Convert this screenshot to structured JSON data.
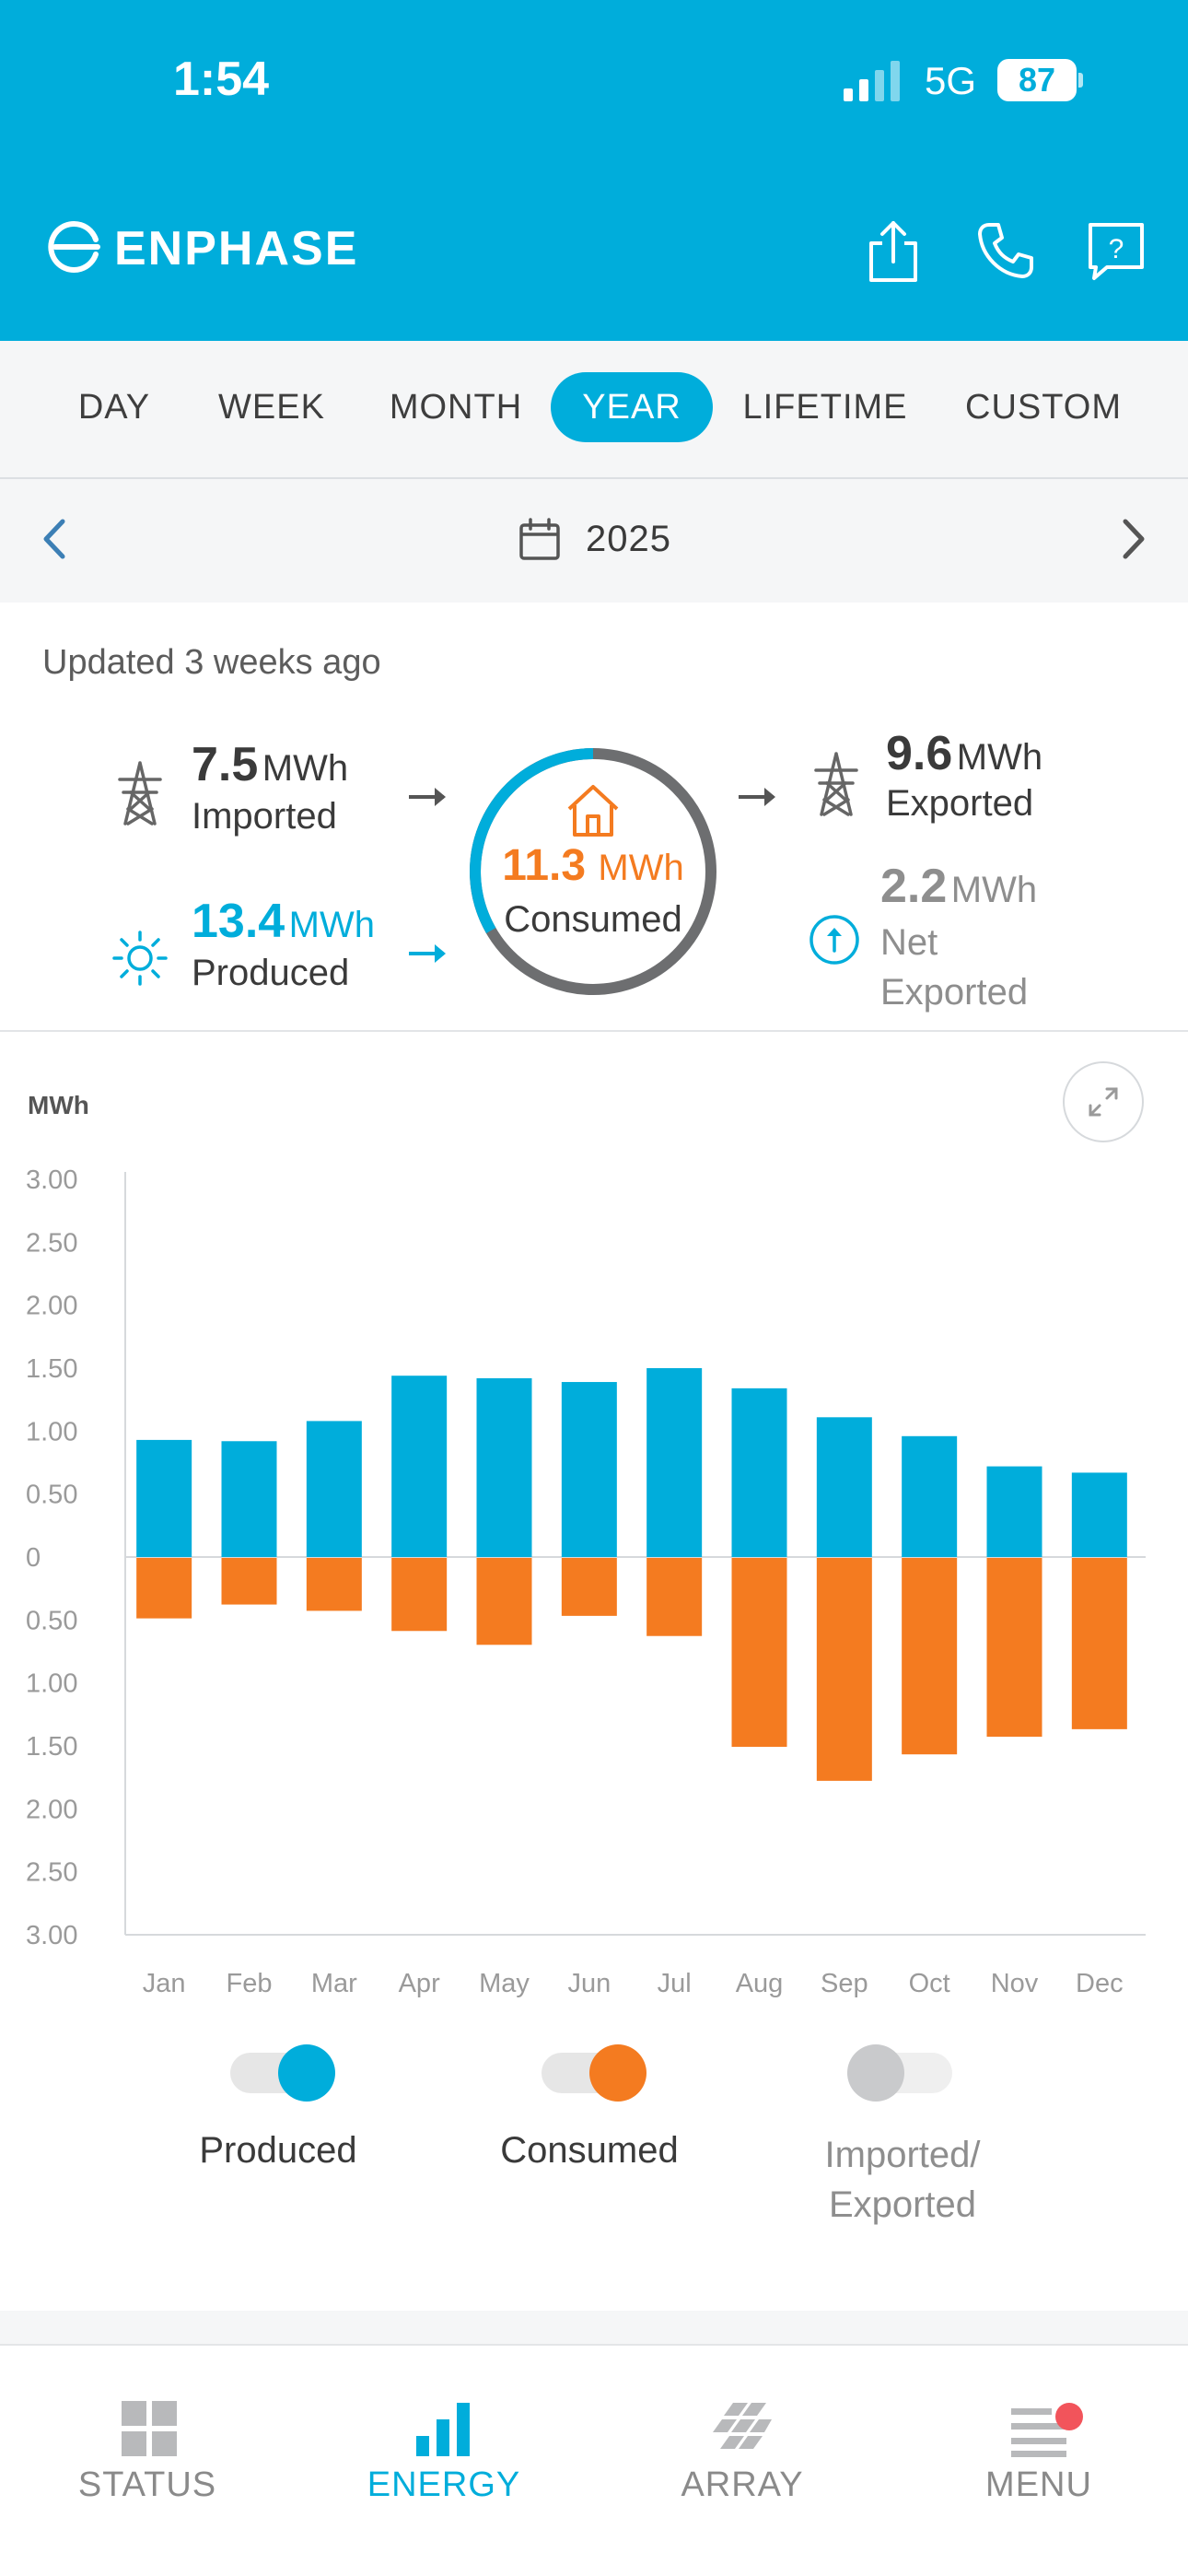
{
  "status_bar": {
    "time": "1:54",
    "network": "5G",
    "battery": "87"
  },
  "header": {
    "brand": "ENPHASE"
  },
  "period_tabs": [
    {
      "label": "DAY",
      "active": false
    },
    {
      "label": "WEEK",
      "active": false
    },
    {
      "label": "MONTH",
      "active": false
    },
    {
      "label": "YEAR",
      "active": true
    },
    {
      "label": "LIFETIME",
      "active": false
    },
    {
      "label": "CUSTOM",
      "active": false
    }
  ],
  "date_nav": {
    "label": "2025"
  },
  "summary": {
    "updated": "Updated 3 weeks ago",
    "imported": {
      "value": "7.5",
      "unit": "MWh",
      "label": "Imported"
    },
    "produced": {
      "value": "13.4",
      "unit": "MWh",
      "label": "Produced"
    },
    "consumed": {
      "value": "11.3",
      "unit": "MWh",
      "label": "Consumed"
    },
    "exported": {
      "value": "9.6",
      "unit": "MWh",
      "label": "Exported"
    },
    "net_exported": {
      "value": "2.2",
      "unit": "MWh",
      "label": "Net Exported"
    }
  },
  "colors": {
    "primary": "#00ADDB",
    "produced": "#00ADDB",
    "consumed": "#F47B20",
    "inactive": "#C9CACC",
    "notification": "#F2545B"
  },
  "chart_data": {
    "type": "bar",
    "ylabel": "MWh",
    "categories": [
      "Jan",
      "Feb",
      "Mar",
      "Apr",
      "May",
      "Jun",
      "Jul",
      "Aug",
      "Sep",
      "Oct",
      "Nov",
      "Dec"
    ],
    "series": [
      {
        "name": "Produced",
        "values": [
          0.93,
          0.92,
          1.08,
          1.44,
          1.42,
          1.39,
          1.5,
          1.34,
          1.11,
          0.96,
          0.72,
          0.67
        ]
      },
      {
        "name": "Consumed",
        "values": [
          0.48,
          0.37,
          0.42,
          0.58,
          0.69,
          0.46,
          0.62,
          1.5,
          1.77,
          1.56,
          1.42,
          1.36
        ]
      }
    ],
    "ylim": [
      -3,
      3
    ],
    "yticks": [
      "3.00",
      "2.50",
      "2.00",
      "1.50",
      "1.00",
      "0.50",
      "0",
      "0.50",
      "1.00",
      "1.50",
      "2.00",
      "2.50",
      "3.00"
    ],
    "grid": false,
    "legend": "bottom"
  },
  "legend": [
    {
      "label": "Produced",
      "on": true
    },
    {
      "label": "Consumed",
      "on": true
    },
    {
      "label": "Imported/ Exported",
      "on": false
    }
  ],
  "bottom_nav": [
    {
      "label": "STATUS",
      "active": false
    },
    {
      "label": "ENERGY",
      "active": true
    },
    {
      "label": "ARRAY",
      "active": false
    },
    {
      "label": "MENU",
      "active": false
    }
  ]
}
